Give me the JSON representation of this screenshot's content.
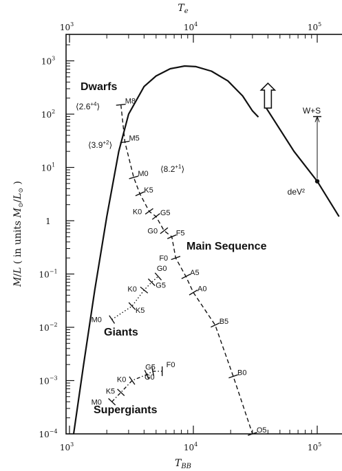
{
  "chart_data": {
    "type": "line",
    "xlabel": "T_BB",
    "x2label": "T_e",
    "ylabel": "M/L (in units M☉/L☉)",
    "xscale": "log",
    "yscale": "log",
    "xlim": [
      1000,
      150000
    ],
    "ylim": [
      0.0001,
      2000
    ],
    "x_ticks": [
      {
        "value": 1000,
        "base": "10",
        "exp": "3"
      },
      {
        "value": 10000,
        "base": "10",
        "exp": "4"
      },
      {
        "value": 100000,
        "base": "10",
        "exp": "5"
      }
    ],
    "y_ticks": [
      {
        "value": 0.0001,
        "base": "10",
        "exp": "−4"
      },
      {
        "value": 0.001,
        "base": "10",
        "exp": "−3"
      },
      {
        "value": 0.01,
        "base": "10",
        "exp": "−2"
      },
      {
        "value": 0.1,
        "base": "10",
        "exp": "−1"
      },
      {
        "value": 1,
        "base": "1",
        "exp": ""
      },
      {
        "value": 10,
        "base": "10",
        "exp": "1"
      },
      {
        "value": 100,
        "base": "10",
        "exp": "2"
      },
      {
        "value": 1000,
        "base": "10",
        "exp": "3"
      }
    ],
    "envelope": {
      "style": "solid",
      "points": [
        [
          1080,
          0.0001
        ],
        [
          1300,
          0.002
        ],
        [
          1600,
          0.05
        ],
        [
          2000,
          1.2
        ],
        [
          2500,
          20
        ],
        [
          3000,
          100
        ],
        [
          4000,
          330
        ],
        [
          5000,
          520
        ],
        [
          6500,
          710
        ],
        [
          8500,
          800
        ],
        [
          10500,
          780
        ],
        [
          14000,
          640
        ],
        [
          19000,
          420
        ],
        [
          25000,
          220
        ],
        [
          30000,
          115
        ],
        [
          33500,
          88
        ]
      ]
    },
    "envelope_continuation": {
      "style": "solid",
      "points": [
        [
          38000,
          140
        ],
        [
          65000,
          20
        ],
        [
          100000,
          5.5
        ],
        [
          150000,
          1.2
        ]
      ]
    },
    "arrow_up": {
      "x": 40000,
      "y_from": 130,
      "y_to": 380
    },
    "annotations": [
      {
        "label": "W+S",
        "x": 100000,
        "y": 90
      },
      {
        "label": "deV²",
        "x": 100000,
        "y": 5.5
      }
    ],
    "series": [
      {
        "name": "Main Sequence",
        "style": "dashed",
        "points": [
          {
            "label": "M8",
            "x": 2600,
            "y": 150
          },
          {
            "label": "M5",
            "x": 2800,
            "y": 30
          },
          {
            "label": "M0",
            "x": 3300,
            "y": 6.5
          },
          {
            "label": "K5",
            "x": 3700,
            "y": 3.2
          },
          {
            "label": "K0",
            "x": 4400,
            "y": 1.5
          },
          {
            "label": "G5",
            "x": 5000,
            "y": 1.2
          },
          {
            "label": "G0",
            "x": 5800,
            "y": 0.65
          },
          {
            "label": "F5",
            "x": 6700,
            "y": 0.5
          },
          {
            "label": "F0",
            "x": 7200,
            "y": 0.2
          },
          {
            "label": "A5",
            "x": 8700,
            "y": 0.09
          },
          {
            "label": "A0",
            "x": 10000,
            "y": 0.045
          },
          {
            "label": "B5",
            "x": 15000,
            "y": 0.011
          },
          {
            "label": "B0",
            "x": 21000,
            "y": 0.0012
          },
          {
            "label": "O5",
            "x": 30000,
            "y": 0.0001
          }
        ]
      },
      {
        "name": "Giants",
        "style": "dotted",
        "points": [
          {
            "label": "M0",
            "x": 2200,
            "y": 0.014
          },
          {
            "label": "K5",
            "x": 3200,
            "y": 0.025
          },
          {
            "label": "K0",
            "x": 4000,
            "y": 0.05
          },
          {
            "label": "G5",
            "x": 4600,
            "y": 0.07
          },
          {
            "label": "G0",
            "x": 5200,
            "y": 0.09
          }
        ]
      },
      {
        "name": "Supergiants",
        "style": "dash-dot",
        "points": [
          {
            "label": "M0",
            "x": 2200,
            "y": 0.0004
          },
          {
            "label": "K5",
            "x": 2600,
            "y": 0.0006
          },
          {
            "label": "K0",
            "x": 3200,
            "y": 0.001
          },
          {
            "label": "G5",
            "x": 4200,
            "y": 0.0013
          },
          {
            "label": "G0",
            "x": 4700,
            "y": 0.0015
          },
          {
            "label": "F0",
            "x": 5600,
            "y": 0.0015
          }
        ]
      }
    ],
    "region_labels": [
      "Dwarfs",
      "Main Sequence",
      "Giants",
      "Supergiants"
    ],
    "bracket_labels": [
      {
        "text": "⟨2.6",
        "exp": "+4",
        "close": "⟩"
      },
      {
        "text": "⟨3.9",
        "exp": "+2",
        "close": "⟩"
      },
      {
        "text": "⟨8.2",
        "exp": "+1",
        "close": "⟩"
      }
    ]
  }
}
